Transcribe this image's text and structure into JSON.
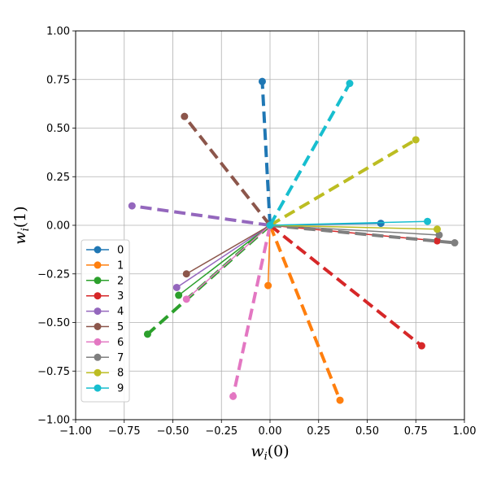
{
  "chart_data": {
    "type": "line",
    "title": "",
    "xlabel": "w_i(0)",
    "ylabel": "w_i(1)",
    "xlim": [
      -1.0,
      1.0
    ],
    "ylim": [
      -1.0,
      1.0
    ],
    "xticks": [
      "−1.00",
      "−0.75",
      "−0.50",
      "−0.25",
      "0.00",
      "0.25",
      "0.50",
      "0.75",
      "1.00"
    ],
    "yticks": [
      "−1.00",
      "−0.75",
      "−0.50",
      "−0.25",
      "0.00",
      "0.25",
      "0.50",
      "0.75",
      "1.00"
    ],
    "grid": true,
    "legend_position": "lower-left",
    "series": [
      {
        "name": "0",
        "color": "#1f77b4",
        "solid_end": [
          0.57,
          0.01
        ],
        "dashed_end": [
          -0.04,
          0.74
        ]
      },
      {
        "name": "1",
        "color": "#ff7f0e",
        "solid_end": [
          -0.01,
          -0.31
        ],
        "dashed_end": [
          0.36,
          -0.9
        ]
      },
      {
        "name": "2",
        "color": "#2ca02c",
        "solid_end": [
          -0.47,
          -0.36
        ],
        "dashed_end": [
          -0.63,
          -0.56
        ]
      },
      {
        "name": "3",
        "color": "#d62728",
        "solid_end": [
          0.86,
          -0.08
        ],
        "dashed_end": [
          0.78,
          -0.62
        ]
      },
      {
        "name": "4",
        "color": "#9467bd",
        "solid_end": [
          -0.48,
          -0.32
        ],
        "dashed_end": [
          -0.71,
          0.1
        ]
      },
      {
        "name": "5",
        "color": "#8c564b",
        "solid_end": [
          -0.43,
          -0.25
        ],
        "dashed_end": [
          -0.44,
          0.56
        ]
      },
      {
        "name": "6",
        "color": "#e377c2",
        "solid_end": [
          -0.43,
          -0.38
        ],
        "dashed_end": [
          -0.19,
          -0.88
        ]
      },
      {
        "name": "7",
        "color": "#7f7f7f",
        "solid_end": [
          0.87,
          -0.05
        ],
        "dashed_end": [
          0.95,
          -0.09
        ]
      },
      {
        "name": "8",
        "color": "#bcbd22",
        "solid_end": [
          0.86,
          -0.02
        ],
        "dashed_end": [
          0.75,
          0.44
        ]
      },
      {
        "name": "9",
        "color": "#17becf",
        "solid_end": [
          0.81,
          0.02
        ],
        "dashed_end": [
          0.41,
          0.73
        ]
      }
    ]
  }
}
